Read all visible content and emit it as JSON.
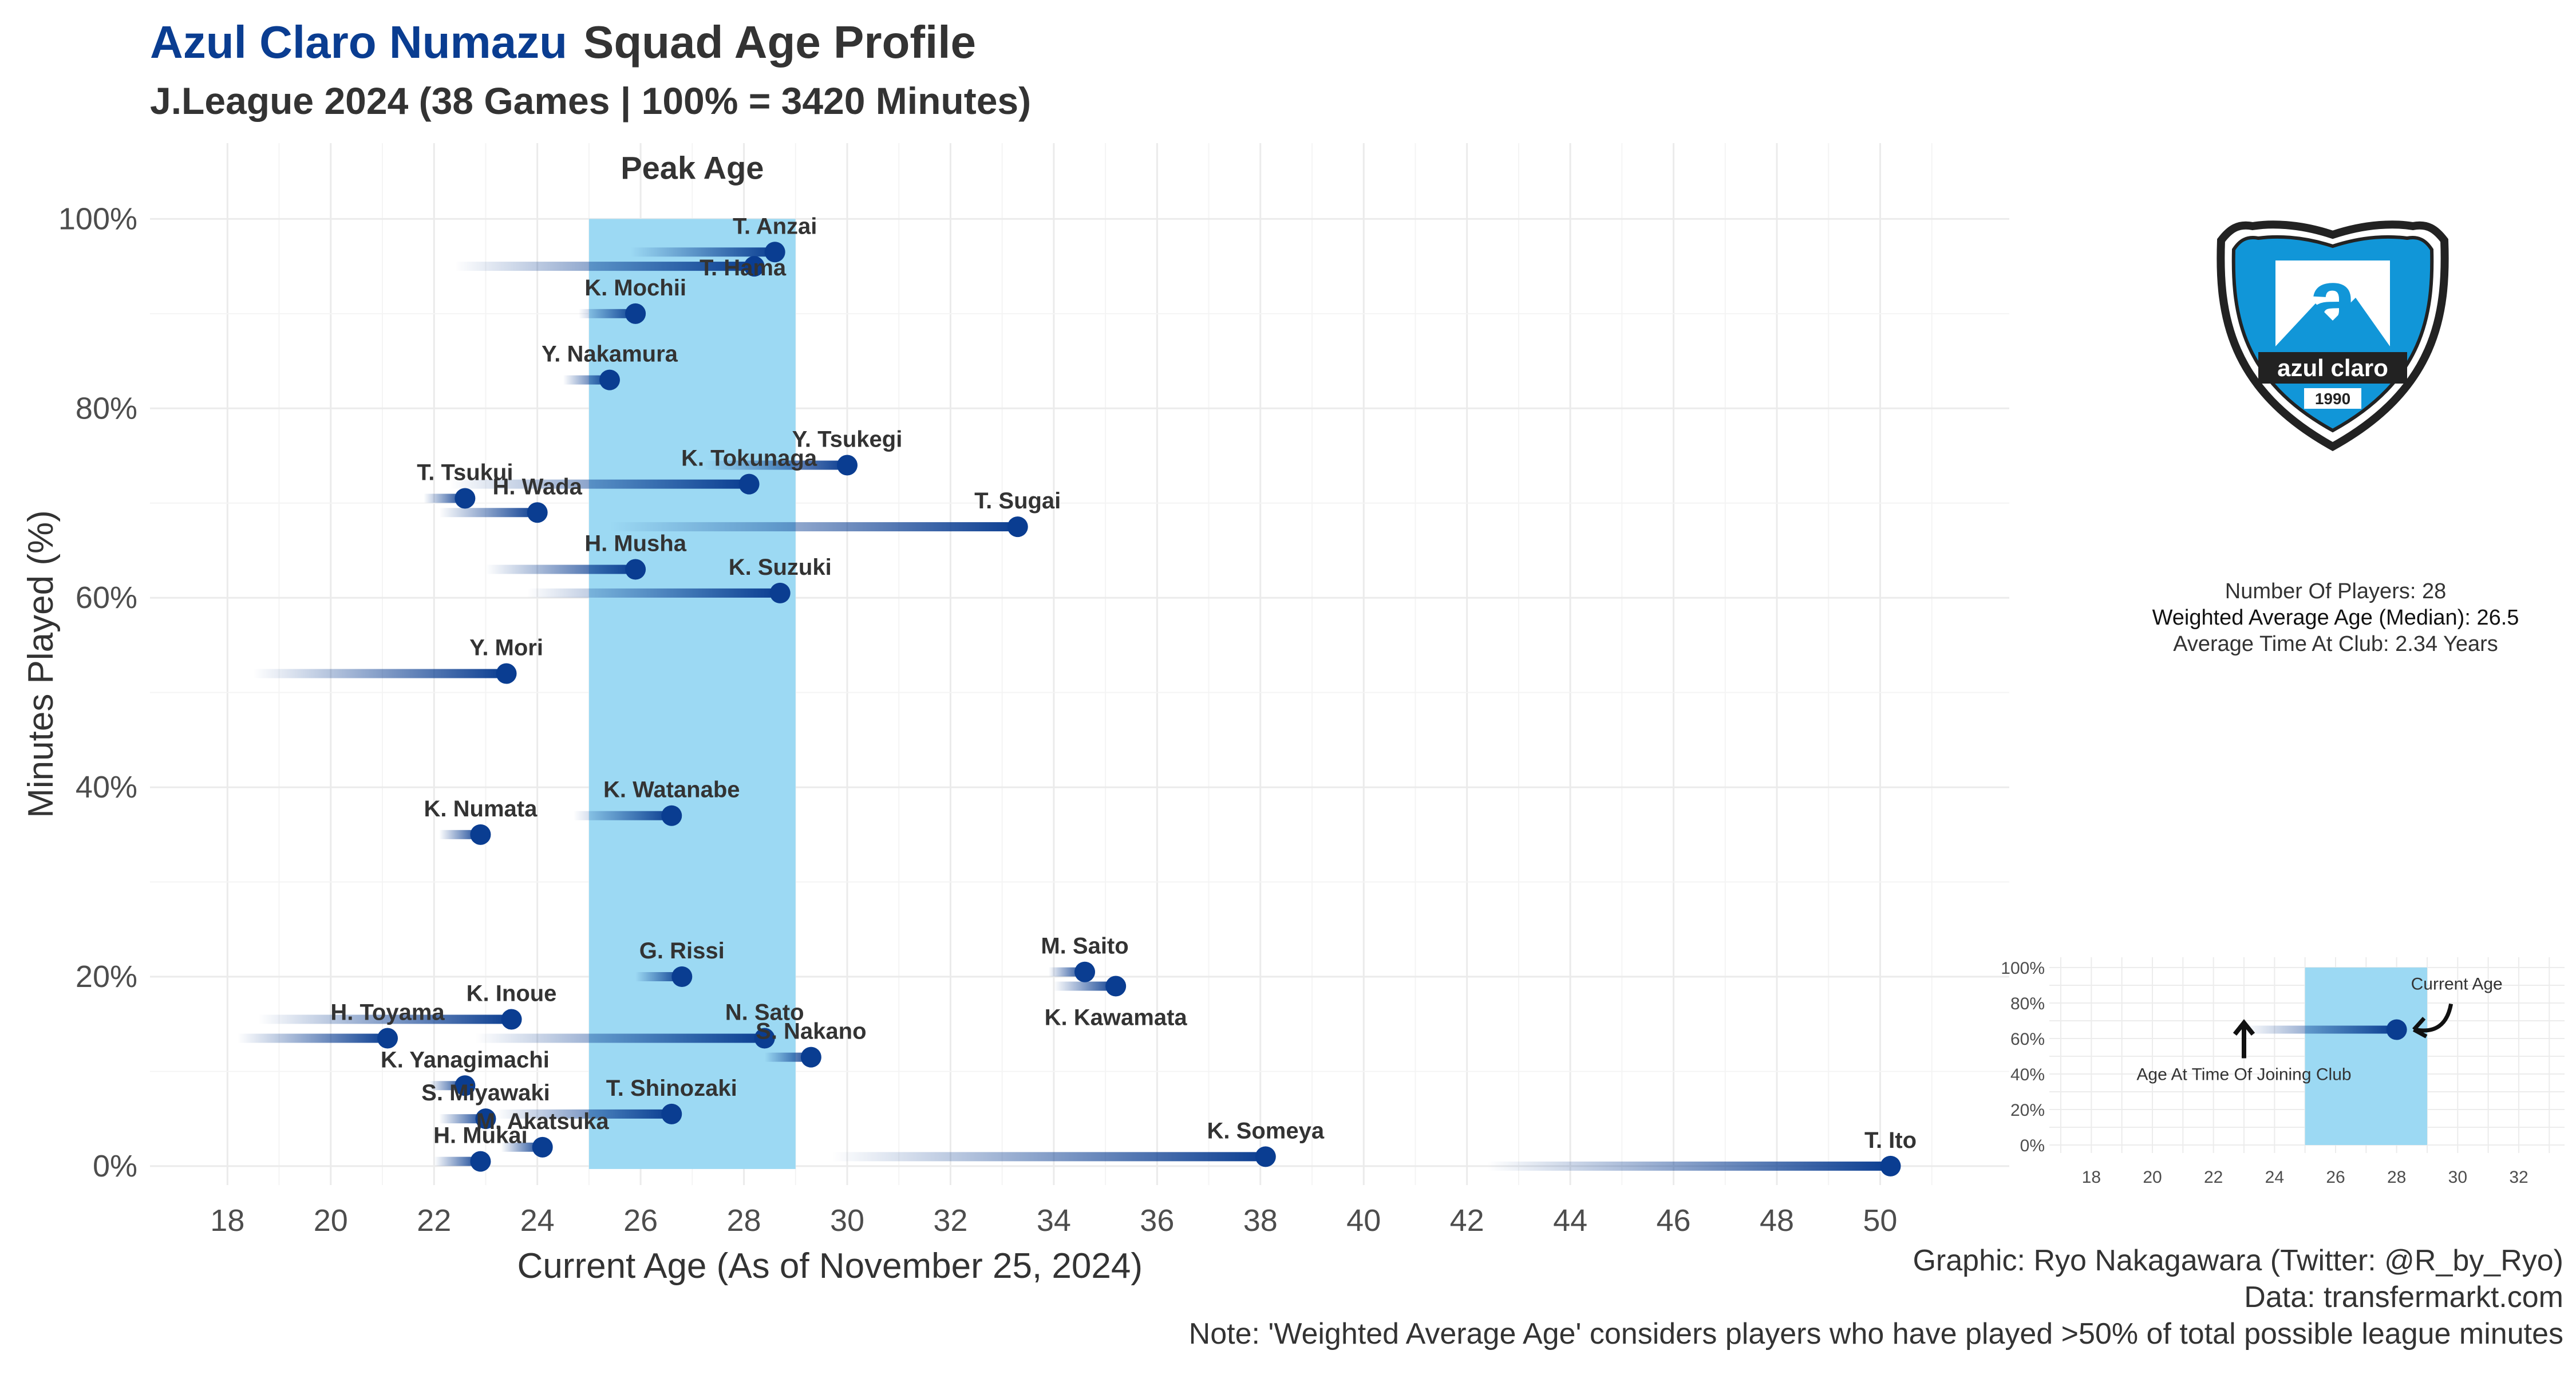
{
  "title": {
    "club": "Azul Claro Numazu",
    "main": "Squad Age Profile"
  },
  "subtitle": "J.League 2024 (38 Games | 100% = 3420 Minutes)",
  "colors": {
    "dot": "#0a3d91",
    "peak_band": "#9cd9f3",
    "title_club": "#0a3d91"
  },
  "stats": {
    "players": "Number Of Players: 28",
    "weighted_age": "Weighted Average Age (Median): 26.5",
    "avg_time": "Average Time At Club: 2.34 Years"
  },
  "caption": {
    "graphic": "Graphic: Ryo Nakagawara (Twitter: @R_by_Ryo)",
    "data": "Data: transfermarkt.com",
    "note": "Note: 'Weighted Average Age' considers players who have played >50% of total possible league minutes"
  },
  "logo": {
    "text": "azul claro",
    "year": "1990",
    "icon": "azul-claro-shield-icon"
  },
  "chart_data": {
    "type": "scatter",
    "xlabel": "Current Age (As of November 25, 2024)",
    "ylabel": "Minutes Played (%)",
    "xlim": [
      16.5,
      52.5
    ],
    "ylim": [
      -2,
      108
    ],
    "xticks": [
      18,
      20,
      22,
      24,
      26,
      28,
      30,
      32,
      34,
      36,
      38,
      40,
      42,
      44,
      46,
      48,
      50
    ],
    "yticks": [
      0,
      20,
      40,
      60,
      80,
      100
    ],
    "ytick_labels": [
      "0%",
      "20%",
      "40%",
      "60%",
      "80%",
      "100%"
    ],
    "grid": true,
    "peak_band": {
      "label": "Peak Age",
      "from": 25,
      "to": 29
    },
    "players": [
      {
        "name": "T. Anzai",
        "age": 28.6,
        "joined_age": 25.8,
        "minutes_pct": 96.5
      },
      {
        "name": "T. Hama",
        "age": 28.2,
        "joined_age": 22.4,
        "minutes_pct": 95
      },
      {
        "name": "K. Mochii",
        "age": 25.9,
        "joined_age": 24.8,
        "minutes_pct": 90
      },
      {
        "name": "Y. Nakamura",
        "age": 25.4,
        "joined_age": 24.5,
        "minutes_pct": 83
      },
      {
        "name": "Y. Tsukegi",
        "age": 30.0,
        "joined_age": 27.2,
        "minutes_pct": 74
      },
      {
        "name": "K. Tokunaga",
        "age": 28.1,
        "joined_age": 22.3,
        "minutes_pct": 72
      },
      {
        "name": "T. Tsukui",
        "age": 22.6,
        "joined_age": 21.8,
        "minutes_pct": 70.5
      },
      {
        "name": "H. Wada",
        "age": 24.0,
        "joined_age": 22.1,
        "minutes_pct": 69
      },
      {
        "name": "T. Sugai",
        "age": 33.3,
        "joined_age": 25.4,
        "minutes_pct": 67.5
      },
      {
        "name": "H. Musha",
        "age": 25.9,
        "joined_age": 23.0,
        "minutes_pct": 63
      },
      {
        "name": "K. Suzuki",
        "age": 28.7,
        "joined_age": 23.8,
        "minutes_pct": 60.5
      },
      {
        "name": "Y. Mori",
        "age": 23.4,
        "joined_age": 18.5,
        "minutes_pct": 52
      },
      {
        "name": "K. Watanabe",
        "age": 26.6,
        "joined_age": 24.7,
        "minutes_pct": 37
      },
      {
        "name": "K. Numata",
        "age": 22.9,
        "joined_age": 22.1,
        "minutes_pct": 35
      },
      {
        "name": "M. Saito",
        "age": 34.6,
        "joined_age": 33.9,
        "minutes_pct": 20.5
      },
      {
        "name": "G. Rissi",
        "age": 26.8,
        "joined_age": 25.9,
        "minutes_pct": 20
      },
      {
        "name": "K. Kawamata",
        "age": 35.2,
        "joined_age": 34.0,
        "minutes_pct": 19
      },
      {
        "name": "K. Inoue",
        "age": 23.5,
        "joined_age": 18.6,
        "minutes_pct": 15.5
      },
      {
        "name": "H. Toyama",
        "age": 21.1,
        "joined_age": 18.2,
        "minutes_pct": 13.5
      },
      {
        "name": "N. Sato",
        "age": 28.4,
        "joined_age": 22.8,
        "minutes_pct": 13.5
      },
      {
        "name": "S. Nakano",
        "age": 29.3,
        "joined_age": 28.4,
        "minutes_pct": 11.5
      },
      {
        "name": "K. Yanagimachi",
        "age": 22.6,
        "joined_age": 21.9,
        "minutes_pct": 8.5
      },
      {
        "name": "T. Shinozaki",
        "age": 26.6,
        "joined_age": 23.2,
        "minutes_pct": 5.5
      },
      {
        "name": "S. Miyawaki",
        "age": 23.0,
        "joined_age": 22.1,
        "minutes_pct": 5
      },
      {
        "name": "M. Akatsuka",
        "age": 24.1,
        "joined_age": 23.3,
        "minutes_pct": 2
      },
      {
        "name": "K. Someya",
        "age": 38.1,
        "joined_age": 29.7,
        "minutes_pct": 1
      },
      {
        "name": "H. Mukai",
        "age": 22.9,
        "joined_age": 22.0,
        "minutes_pct": 0.5
      },
      {
        "name": "T. Ito",
        "age": 50.2,
        "joined_age": 42.4,
        "minutes_pct": 0
      }
    ],
    "legend_mini": {
      "xticks": [
        18,
        20,
        22,
        24,
        26,
        28,
        30,
        32
      ],
      "yticks": [
        "0%",
        "20%",
        "40%",
        "60%",
        "80%",
        "100%"
      ],
      "peak_band": {
        "from": 25,
        "to": 29
      },
      "example": {
        "joined_age": 23,
        "age": 28,
        "minutes_pct": 65
      },
      "labels": {
        "current": "Current Age",
        "joined": "Age At Time Of Joining Club"
      }
    }
  }
}
